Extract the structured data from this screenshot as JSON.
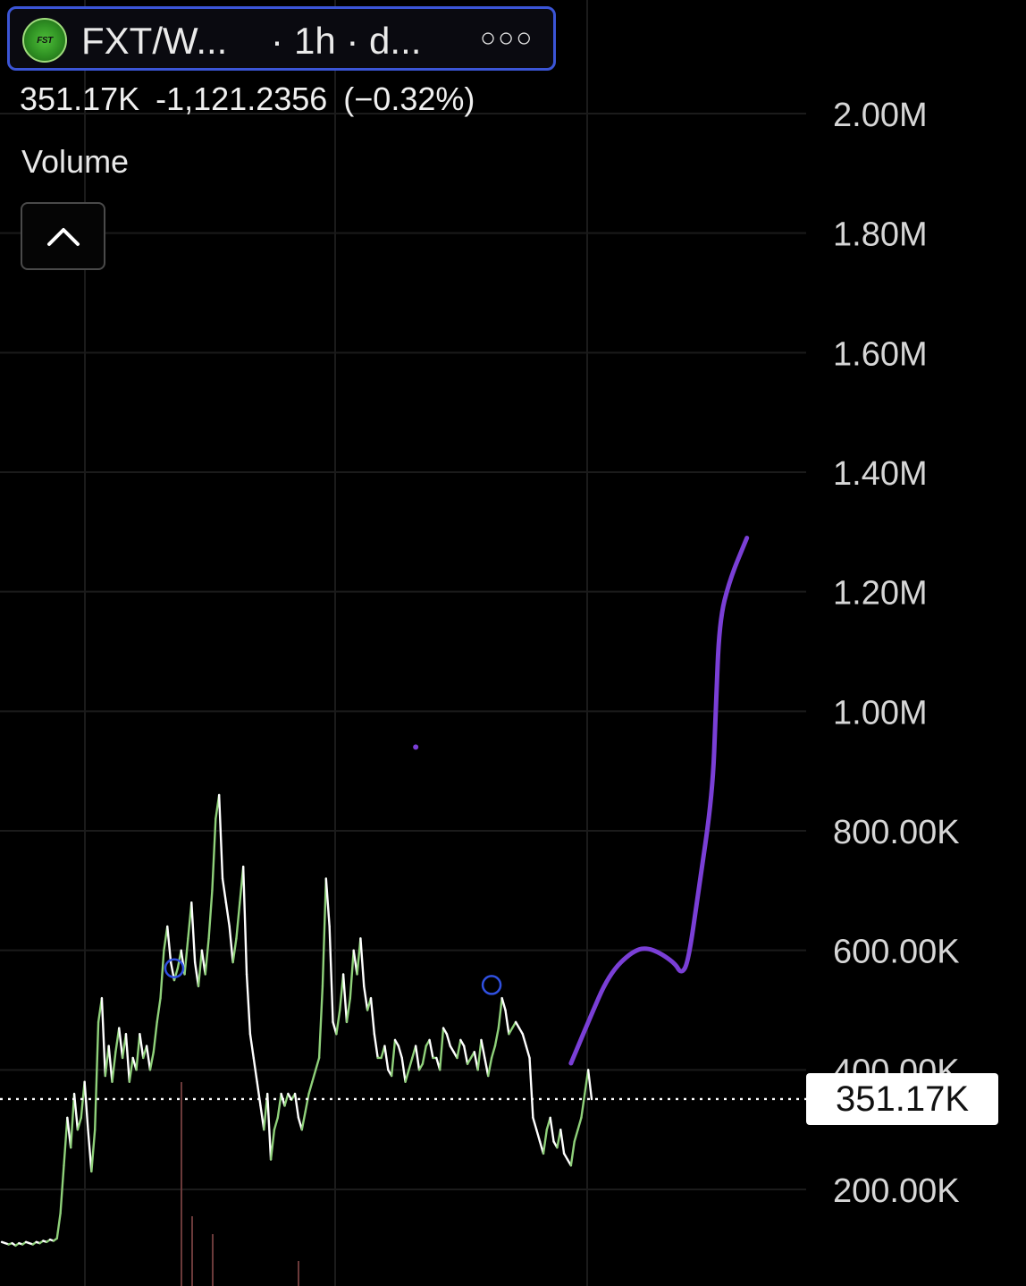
{
  "header": {
    "symbol": "FXT/W...",
    "separator": "·",
    "interval": "1h · d...",
    "more_icon": "more-horizontal-icon",
    "logo_text": "FST"
  },
  "quote": {
    "last": "351.17K",
    "change": "-1,121.2356",
    "change_pct": "(−0.32%)"
  },
  "volume_label": "Volume",
  "collapse_icon": "chevron-up-icon",
  "colors": {
    "up": "#8fd17a",
    "down": "#ffffff",
    "drawing": "#7a3fd6",
    "marker": "#3050e0",
    "grid": "#1b1b1b"
  },
  "chart_data": {
    "type": "line",
    "current_price": 351.17,
    "current_price_label": "351.17K",
    "y_unit": "K",
    "ylim": [
      90,
      2110
    ],
    "y_ticks": [
      200,
      400,
      600,
      800,
      1000,
      1200,
      1400,
      1600,
      1800,
      2000
    ],
    "y_tick_labels": [
      "200.00K",
      "400.00K",
      "600.00K",
      "800.00K",
      "1.00M",
      "1.20M",
      "1.40M",
      "1.60M",
      "1.80M",
      "2.00M"
    ],
    "grid": true,
    "series": [
      {
        "values": [
          112,
          110,
          108,
          110,
          106,
          110,
          108,
          112,
          110,
          108,
          112,
          110,
          114,
          112,
          116,
          114,
          118,
          160,
          240,
          320,
          270,
          360,
          300,
          320,
          380,
          300,
          230,
          300,
          480,
          520,
          390,
          440,
          380,
          430,
          470,
          420,
          460,
          380,
          420,
          400,
          460,
          420,
          440,
          400,
          430,
          480,
          520,
          600,
          640,
          580,
          550,
          570,
          600,
          560,
          620,
          680,
          580,
          540,
          600,
          560,
          620,
          700,
          820,
          860,
          720,
          680,
          640,
          580,
          620,
          680,
          740,
          560,
          460,
          420,
          380,
          340,
          300,
          360,
          250,
          300,
          320,
          360,
          340,
          360,
          350,
          360,
          320,
          300,
          330,
          360,
          380,
          400,
          420,
          540,
          720,
          640,
          480,
          460,
          500,
          560,
          480,
          520,
          600,
          560,
          620,
          540,
          500,
          520,
          460,
          420,
          420,
          440,
          400,
          390,
          450,
          440,
          420,
          380,
          400,
          420,
          440,
          400,
          410,
          440,
          450,
          420,
          420,
          400,
          470,
          460,
          440,
          430,
          420,
          450,
          440,
          410,
          420,
          430,
          400,
          450,
          420,
          390,
          420,
          440,
          470,
          520,
          500,
          460,
          470,
          480,
          470,
          460,
          440,
          420,
          320,
          300,
          280,
          260,
          300,
          320,
          280,
          270,
          300,
          260,
          250,
          240,
          280,
          300,
          320,
          360,
          400,
          351
        ]
      }
    ],
    "markers": [
      {
        "x_index": 50,
        "y": 570
      },
      {
        "x_index": 142,
        "y": 542
      }
    ],
    "annotation_path": [
      [
        165,
        411
      ],
      [
        170,
        480
      ],
      [
        176,
        560
      ],
      [
        183,
        600
      ],
      [
        188,
        605
      ],
      [
        195,
        580
      ],
      [
        197,
        560
      ],
      [
        199,
        580
      ],
      [
        202,
        700
      ],
      [
        206,
        860
      ],
      [
        207,
        1000
      ],
      [
        208,
        1150
      ],
      [
        211,
        1220
      ],
      [
        216,
        1290
      ]
    ],
    "annotation_dot": {
      "x_index": 120,
      "y": 940
    }
  }
}
